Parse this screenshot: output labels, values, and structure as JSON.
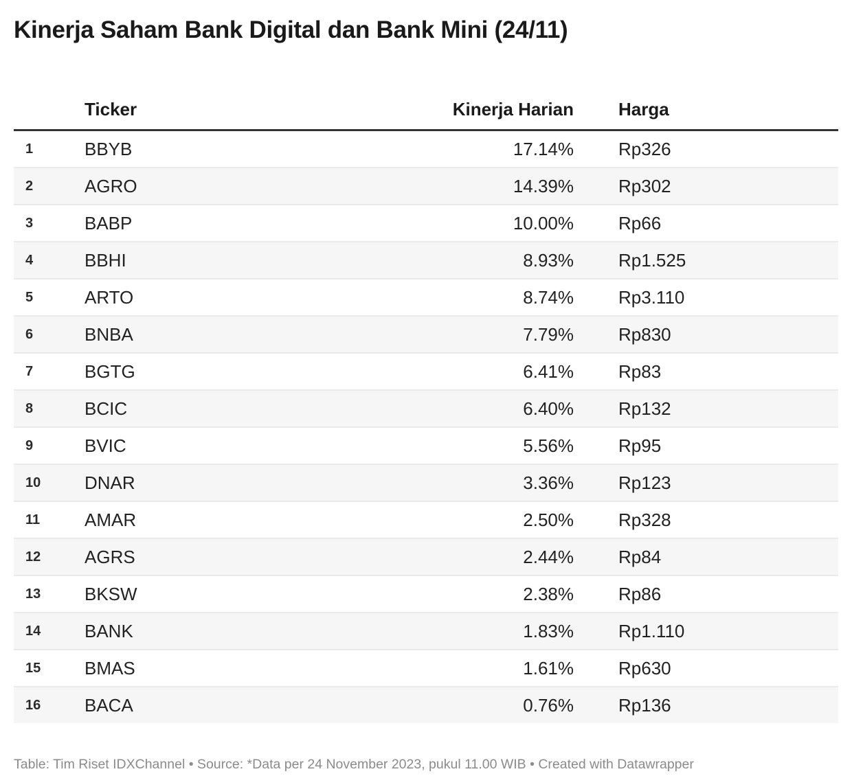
{
  "title": "Kinerja Saham Bank Digital dan Bank Mini (24/11)",
  "table": {
    "columns": {
      "index_label": "",
      "ticker_label": "Ticker",
      "kinerja_label": "Kinerja Harian",
      "harga_label": "Harga"
    },
    "rows": [
      {
        "no": "1",
        "ticker": "BBYB",
        "kinerja": "17.14%",
        "harga": "Rp326"
      },
      {
        "no": "2",
        "ticker": "AGRO",
        "kinerja": "14.39%",
        "harga": "Rp302"
      },
      {
        "no": "3",
        "ticker": "BABP",
        "kinerja": "10.00%",
        "harga": "Rp66"
      },
      {
        "no": "4",
        "ticker": "BBHI",
        "kinerja": "8.93%",
        "harga": "Rp1.525"
      },
      {
        "no": "5",
        "ticker": "ARTO",
        "kinerja": "8.74%",
        "harga": "Rp3.110"
      },
      {
        "no": "6",
        "ticker": "BNBA",
        "kinerja": "7.79%",
        "harga": "Rp830"
      },
      {
        "no": "7",
        "ticker": "BGTG",
        "kinerja": "6.41%",
        "harga": "Rp83"
      },
      {
        "no": "8",
        "ticker": "BCIC",
        "kinerja": "6.40%",
        "harga": "Rp132"
      },
      {
        "no": "9",
        "ticker": "BVIC",
        "kinerja": "5.56%",
        "harga": "Rp95"
      },
      {
        "no": "10",
        "ticker": "DNAR",
        "kinerja": "3.36%",
        "harga": "Rp123"
      },
      {
        "no": "11",
        "ticker": "AMAR",
        "kinerja": "2.50%",
        "harga": "Rp328"
      },
      {
        "no": "12",
        "ticker": "AGRS",
        "kinerja": "2.44%",
        "harga": "Rp84"
      },
      {
        "no": "13",
        "ticker": "BKSW",
        "kinerja": "2.38%",
        "harga": "Rp86"
      },
      {
        "no": "14",
        "ticker": "BANK",
        "kinerja": "1.83%",
        "harga": "Rp1.110"
      },
      {
        "no": "15",
        "ticker": "BMAS",
        "kinerja": "1.61%",
        "harga": "Rp630"
      },
      {
        "no": "16",
        "ticker": "BACA",
        "kinerja": "0.76%",
        "harga": "Rp136"
      }
    ]
  },
  "footer_text": "Table: Tim Riset IDXChannel • Source: *Data per 24 November 2023, pukul 11.00 WIB • Created with Datawrapper",
  "colors": {
    "title_text": "#1a1a1a",
    "body_text": "#222222",
    "header_rule": "#333333",
    "row_stripe": "#f6f6f6",
    "row_separator": "#e9e9e9",
    "footer_text": "#8b8b8b",
    "background": "#ffffff"
  },
  "chart_data": {
    "type": "table",
    "title": "Kinerja Saham Bank Digital dan Bank Mini (24/11)",
    "columns": [
      "Ticker",
      "Kinerja Harian",
      "Harga"
    ],
    "tickers": [
      "BBYB",
      "AGRO",
      "BABP",
      "BBHI",
      "ARTO",
      "BNBA",
      "BGTG",
      "BCIC",
      "BVIC",
      "DNAR",
      "AMAR",
      "AGRS",
      "BKSW",
      "BANK",
      "BMAS",
      "BACA"
    ],
    "kinerja_harian_pct": [
      17.14,
      14.39,
      10.0,
      8.93,
      8.74,
      7.79,
      6.41,
      6.4,
      5.56,
      3.36,
      2.5,
      2.44,
      2.38,
      1.83,
      1.61,
      0.76
    ],
    "harga_rp": [
      326,
      302,
      66,
      1525,
      3110,
      830,
      83,
      132,
      95,
      123,
      328,
      84,
      86,
      1110,
      630,
      136
    ]
  }
}
